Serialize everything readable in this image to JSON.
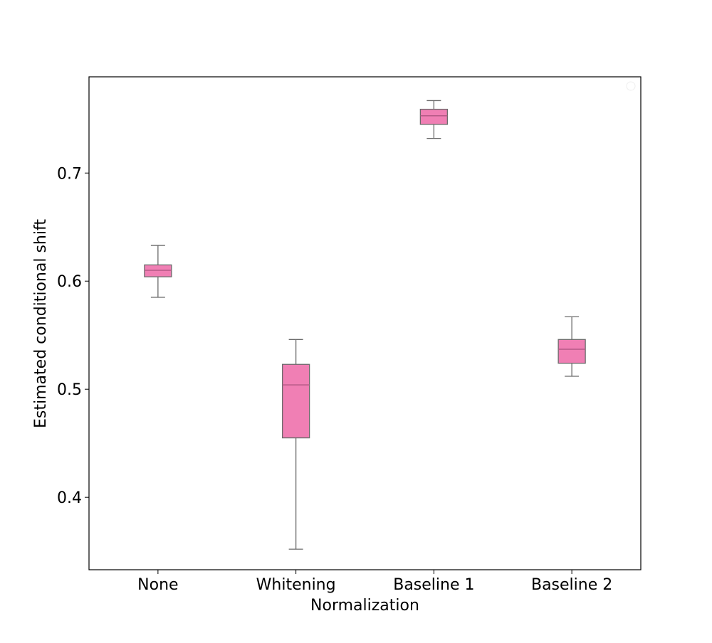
{
  "chart_data": {
    "type": "box",
    "xlabel": "Normalization",
    "ylabel": "Estimated conditional shift",
    "categories": [
      "None",
      "Whitening",
      "Baseline 1",
      "Baseline 2"
    ],
    "boxes": [
      {
        "category": "None",
        "whisker_low": 0.585,
        "q1": 0.604,
        "median": 0.61,
        "q3": 0.615,
        "whisker_high": 0.633
      },
      {
        "category": "Whitening",
        "whisker_low": 0.352,
        "q1": 0.455,
        "median": 0.504,
        "q3": 0.523,
        "whisker_high": 0.546
      },
      {
        "category": "Baseline 1",
        "whisker_low": 0.732,
        "q1": 0.745,
        "median": 0.753,
        "q3": 0.759,
        "whisker_high": 0.767
      },
      {
        "category": "Baseline 2",
        "whisker_low": 0.512,
        "q1": 0.524,
        "median": 0.537,
        "q3": 0.546,
        "whisker_high": 0.567
      }
    ],
    "yticks": [
      0.4,
      0.5,
      0.6,
      0.7
    ],
    "ytick_labels": [
      "0.4",
      "0.5",
      "0.6",
      "0.7"
    ],
    "ylim": [
      0.333,
      0.789
    ],
    "box_color": "#f07fb4",
    "edge_color": "#6b6b6b",
    "grid": false,
    "legend": "top-right"
  }
}
